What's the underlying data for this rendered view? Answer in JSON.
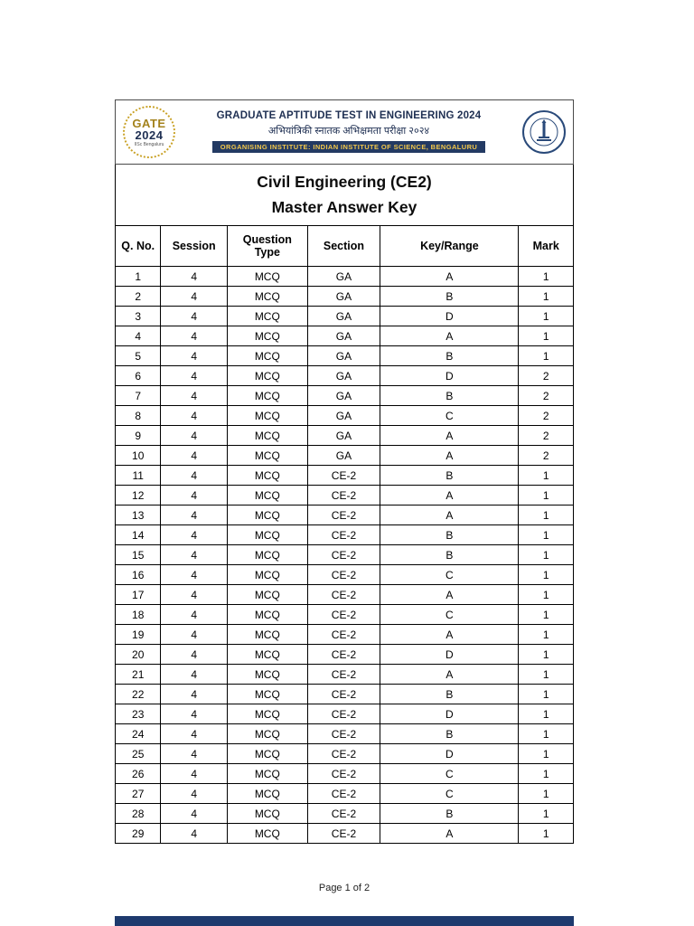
{
  "header": {
    "gate_logo": {
      "word": "GATE",
      "year": "2024",
      "subtext": "IISc Bengaluru"
    },
    "line1": "GRADUATE APTITUDE TEST IN ENGINEERING 2024",
    "line2": "अभियांत्रिकी स्नातक अभिक्षमता परीक्षा २०२४",
    "line3": "ORGANISING INSTITUTE: INDIAN INSTITUTE OF SCIENCE, BENGALURU"
  },
  "doc": {
    "title_line1": "Civil Engineering (CE2)",
    "title_line2": "Master Answer Key"
  },
  "table": {
    "columns": [
      "Q. No.",
      "Session",
      "Question Type",
      "Section",
      "Key/Range",
      "Mark"
    ],
    "rows": [
      [
        "1",
        "4",
        "MCQ",
        "GA",
        "A",
        "1"
      ],
      [
        "2",
        "4",
        "MCQ",
        "GA",
        "B",
        "1"
      ],
      [
        "3",
        "4",
        "MCQ",
        "GA",
        "D",
        "1"
      ],
      [
        "4",
        "4",
        "MCQ",
        "GA",
        "A",
        "1"
      ],
      [
        "5",
        "4",
        "MCQ",
        "GA",
        "B",
        "1"
      ],
      [
        "6",
        "4",
        "MCQ",
        "GA",
        "D",
        "2"
      ],
      [
        "7",
        "4",
        "MCQ",
        "GA",
        "B",
        "2"
      ],
      [
        "8",
        "4",
        "MCQ",
        "GA",
        "C",
        "2"
      ],
      [
        "9",
        "4",
        "MCQ",
        "GA",
        "A",
        "2"
      ],
      [
        "10",
        "4",
        "MCQ",
        "GA",
        "A",
        "2"
      ],
      [
        "11",
        "4",
        "MCQ",
        "CE-2",
        "B",
        "1"
      ],
      [
        "12",
        "4",
        "MCQ",
        "CE-2",
        "A",
        "1"
      ],
      [
        "13",
        "4",
        "MCQ",
        "CE-2",
        "A",
        "1"
      ],
      [
        "14",
        "4",
        "MCQ",
        "CE-2",
        "B",
        "1"
      ],
      [
        "15",
        "4",
        "MCQ",
        "CE-2",
        "B",
        "1"
      ],
      [
        "16",
        "4",
        "MCQ",
        "CE-2",
        "C",
        "1"
      ],
      [
        "17",
        "4",
        "MCQ",
        "CE-2",
        "A",
        "1"
      ],
      [
        "18",
        "4",
        "MCQ",
        "CE-2",
        "C",
        "1"
      ],
      [
        "19",
        "4",
        "MCQ",
        "CE-2",
        "A",
        "1"
      ],
      [
        "20",
        "4",
        "MCQ",
        "CE-2",
        "D",
        "1"
      ],
      [
        "21",
        "4",
        "MCQ",
        "CE-2",
        "A",
        "1"
      ],
      [
        "22",
        "4",
        "MCQ",
        "CE-2",
        "B",
        "1"
      ],
      [
        "23",
        "4",
        "MCQ",
        "CE-2",
        "D",
        "1"
      ],
      [
        "24",
        "4",
        "MCQ",
        "CE-2",
        "B",
        "1"
      ],
      [
        "25",
        "4",
        "MCQ",
        "CE-2",
        "D",
        "1"
      ],
      [
        "26",
        "4",
        "MCQ",
        "CE-2",
        "C",
        "1"
      ],
      [
        "27",
        "4",
        "MCQ",
        "CE-2",
        "C",
        "1"
      ],
      [
        "28",
        "4",
        "MCQ",
        "CE-2",
        "B",
        "1"
      ],
      [
        "29",
        "4",
        "MCQ",
        "CE-2",
        "A",
        "1"
      ]
    ]
  },
  "footer": {
    "page_indicator": "Page 1 of 2"
  },
  "colors": {
    "brand_navy": "#1e2f52",
    "brand_gold": "#c9a227",
    "strip_bg": "#233a63",
    "strip_text": "#f3c84b",
    "next_page_edge": "#1e3a6e"
  }
}
